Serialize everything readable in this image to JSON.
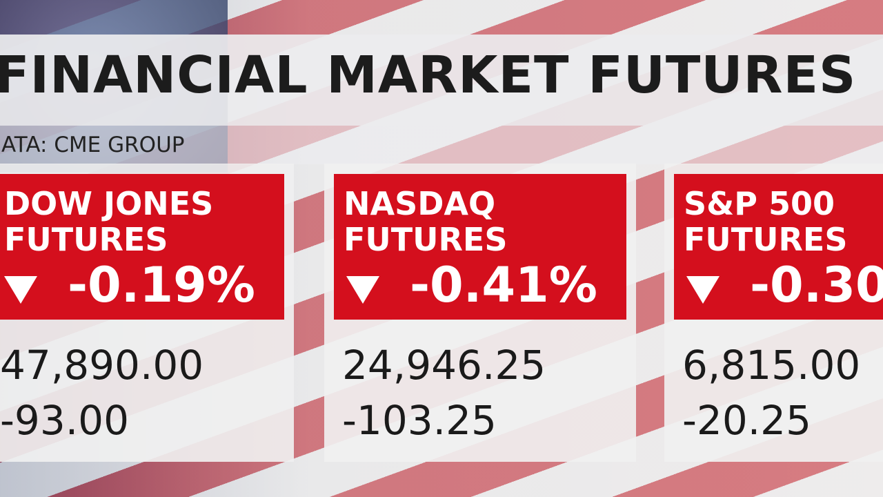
{
  "header": {
    "title": "FINANCIAL MARKET FUTURES",
    "source": "ATA: CME GROUP"
  },
  "cards": [
    {
      "name": [
        "DOW JONES",
        "FUTURES"
      ],
      "change": "-0.19%",
      "price": "47,890.00",
      "net": "-93.00"
    },
    {
      "name": [
        "NASDAQ",
        "FUTURES"
      ],
      "change": "-0.41%",
      "price": "24,946.25",
      "net": "-103.25"
    },
    {
      "name": [
        "S&P 500",
        "FUTURES"
      ],
      "change": "-0.30",
      "price": "6,815.00",
      "net": "-20.25"
    }
  ]
}
